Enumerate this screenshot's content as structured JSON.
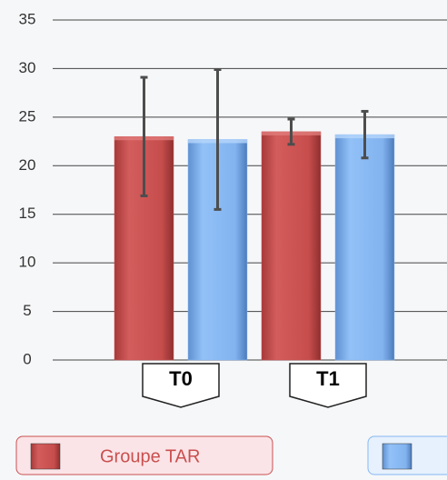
{
  "chart_data": {
    "type": "bar",
    "categories": [
      "T0",
      "T1"
    ],
    "series": [
      {
        "name": "Groupe TAR",
        "color": "#c9504f",
        "values": [
          23,
          23.5
        ],
        "errors": [
          6.1,
          1.3
        ]
      },
      {
        "color": "#86b7f3",
        "values": [
          22.7,
          23.2
        ],
        "errors": [
          7.2,
          2.4
        ]
      }
    ],
    "ylim": [
      0,
      35
    ],
    "yticks": [
      0,
      5,
      10,
      15,
      20,
      25,
      30,
      35
    ],
    "grid": true
  }
}
